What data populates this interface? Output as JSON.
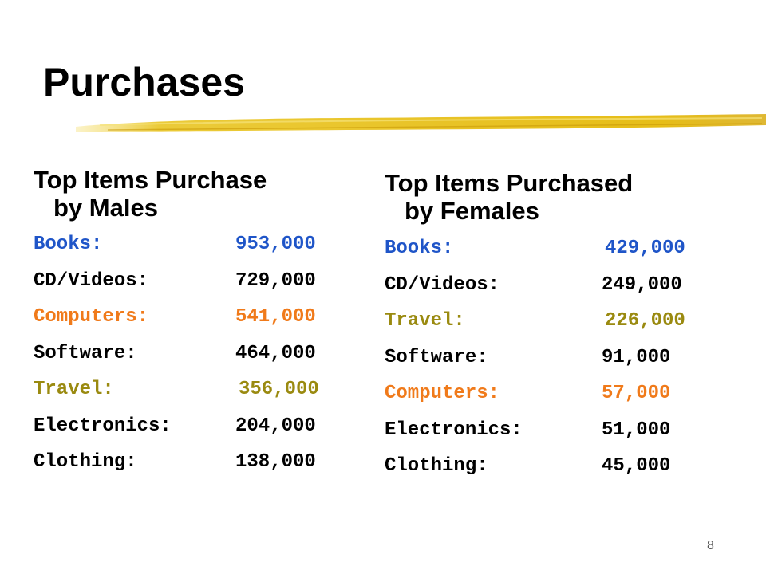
{
  "title": "Purchases",
  "colors": {
    "blue": "#1f55c8",
    "black": "#000000",
    "orange": "#f07a1a",
    "olive": "#9a8a10",
    "stroke": "#e8c21a"
  },
  "males": {
    "heading_line1": "Top Items Purchase",
    "heading_line2": "by Males",
    "items": [
      {
        "label": "Books:",
        "value": "953,000",
        "color": "#1f55c8"
      },
      {
        "label": "CD/Videos:",
        "value": "729,000",
        "color": "#000000"
      },
      {
        "label": "Computers:",
        "value": "541,000",
        "color": "#f07a1a"
      },
      {
        "label": "Software:",
        "value": "464,000",
        "color": "#000000"
      },
      {
        "label": "Travel:",
        "value": "356,000",
        "color": "#9a8a10"
      },
      {
        "label": "Electronics:",
        "value": "204,000",
        "color": "#000000"
      },
      {
        "label": "Clothing:",
        "value": "138,000",
        "color": "#000000"
      }
    ]
  },
  "females": {
    "heading_line1": "Top Items Purchased",
    "heading_line2": "by Females",
    "items": [
      {
        "label": "Books:",
        "value": "429,000",
        "color": "#1f55c8"
      },
      {
        "label": "CD/Videos:",
        "value": "249,000",
        "color": "#000000"
      },
      {
        "label": "Travel:",
        "value": "226,000",
        "color": "#9a8a10"
      },
      {
        "label": "Software:",
        "value": "91,000",
        "color": "#000000"
      },
      {
        "label": "Computers:",
        "value": "57,000",
        "color": "#f07a1a"
      },
      {
        "label": "Electronics:",
        "value": "51,000",
        "color": "#000000"
      },
      {
        "label": "Clothing:",
        "value": "45,000",
        "color": "#000000"
      }
    ]
  },
  "page_number": "8"
}
